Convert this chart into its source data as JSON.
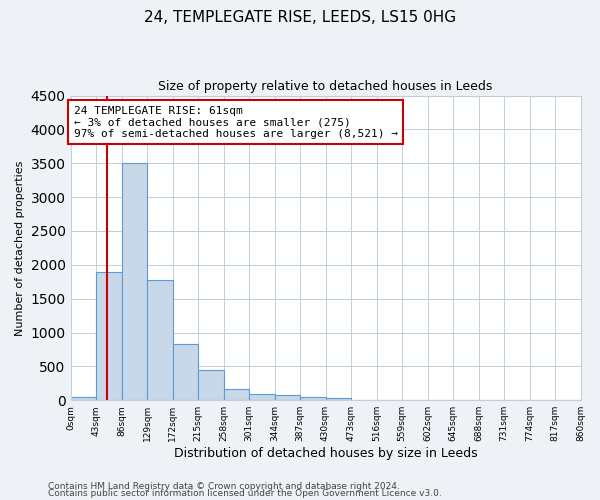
{
  "title": "24, TEMPLEGATE RISE, LEEDS, LS15 0HG",
  "subtitle": "Size of property relative to detached houses in Leeds",
  "xlabel": "Distribution of detached houses by size in Leeds",
  "ylabel": "Number of detached properties",
  "bar_edges": [
    0,
    43,
    86,
    129,
    172,
    215,
    258,
    301,
    344,
    387,
    430,
    473,
    516,
    559,
    602,
    645,
    688,
    731,
    774,
    817,
    860
  ],
  "bar_heights": [
    50,
    1900,
    3500,
    1775,
    825,
    450,
    160,
    95,
    70,
    45,
    40,
    0,
    0,
    0,
    0,
    0,
    0,
    0,
    0,
    0
  ],
  "bar_color": "#c8d8e8",
  "bar_edge_color": "#5b9bd5",
  "ylim": [
    0,
    4500
  ],
  "yticks": [
    0,
    500,
    1000,
    1500,
    2000,
    2500,
    3000,
    3500,
    4000,
    4500
  ],
  "property_line_x": 61,
  "property_line_color": "#cc0000",
  "annotation_line1": "24 TEMPLEGATE RISE: 61sqm",
  "annotation_line2": "← 3% of detached houses are smaller (275)",
  "annotation_line3": "97% of semi-detached houses are larger (8,521) →",
  "annotation_box_color": "#ffffff",
  "annotation_box_edge": "#cc0000",
  "footer_line1": "Contains HM Land Registry data © Crown copyright and database right 2024.",
  "footer_line2": "Contains public sector information licensed under the Open Government Licence v3.0.",
  "background_color": "#eef2f7",
  "plot_background": "#ffffff",
  "grid_color": "#c0cfe0"
}
